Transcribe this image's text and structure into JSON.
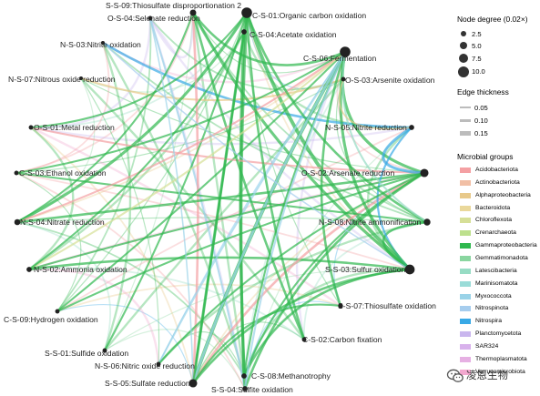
{
  "nodes": [
    {
      "id": "S-S-09",
      "label": "S-S-09:Thiosulfate disproportionation 2",
      "degree": 4.5
    },
    {
      "id": "C-S-01",
      "label": "C-S-01:Organic carbon oxidation",
      "degree": 10
    },
    {
      "id": "C-S-04",
      "label": "C-S-04:Acetate oxidation",
      "degree": 3
    },
    {
      "id": "C-S-06",
      "label": "C-S-06:Fermentation",
      "degree": 10
    },
    {
      "id": "O-S-03",
      "label": "O-S-03:Arsenite oxidation",
      "degree": 2
    },
    {
      "id": "N-S-05",
      "label": "N-S-05:Nitrite reduction",
      "degree": 3
    },
    {
      "id": "O-S-02",
      "label": "O-S-02:Arsenate reduction",
      "degree": 7
    },
    {
      "id": "N-S-08",
      "label": "N-S-08:Nitrite ammonification",
      "degree": 5
    },
    {
      "id": "S-S-03",
      "label": "S-S-03:Sulfur oxidation",
      "degree": 9
    },
    {
      "id": "S-S-07",
      "label": "S-S-07:Thiosulfate oxidation",
      "degree": 2.5
    },
    {
      "id": "C-S-02",
      "label": "C-S-02:Carbon fixation",
      "degree": 2
    },
    {
      "id": "C-S-08",
      "label": "C-S-08:Methanotrophy",
      "degree": 3
    },
    {
      "id": "S-S-04",
      "label": "S-S-04:Sulfite oxidation",
      "degree": 3
    },
    {
      "id": "S-S-05",
      "label": "S-S-05:Sulfate reduction",
      "degree": 7
    },
    {
      "id": "N-S-06",
      "label": "N-S-06:Nitric oxide reduction",
      "degree": 2
    },
    {
      "id": "S-S-01",
      "label": "S-S-01:Sulfide oxidation",
      "degree": 2
    },
    {
      "id": "C-S-09",
      "label": "C-S-09:Hydrogen oxidation",
      "degree": 2
    },
    {
      "id": "N-S-02",
      "label": "N-S-02:Ammonia oxidation",
      "degree": 3
    },
    {
      "id": "N-S-04",
      "label": "N-S-04:Nitrate reduction",
      "degree": 4
    },
    {
      "id": "C-S-03",
      "label": "C-S-03:Ethanol oxidation",
      "degree": 2
    },
    {
      "id": "O-S-01",
      "label": "O-S-01:Metal reduction",
      "degree": 2
    },
    {
      "id": "N-S-07",
      "label": "N-S-07:Nitrous oxide reduction",
      "degree": 1
    },
    {
      "id": "N-S-03",
      "label": "N-S-03:Nitrite oxidation",
      "degree": 1
    },
    {
      "id": "O-S-04",
      "label": "O-S-04:Selenate reduction",
      "degree": 2
    }
  ],
  "edges": [
    {
      "source": "N-S-03",
      "target": "N-S-05",
      "group": "Nitrospira",
      "weight": 0.1
    },
    {
      "source": "N-S-07",
      "target": "O-S-03",
      "group": "Alphaproteobacteria",
      "weight": 0.08
    },
    {
      "source": "O-S-04",
      "target": "S-S-04",
      "group": "Myxococcota",
      "weight": 0.08
    },
    {
      "source": "C-S-01",
      "target": "S-S-03",
      "group": "Gammaproteobacteria",
      "weight": 0.15
    },
    {
      "source": "C-S-01",
      "target": "S-S-05",
      "group": "Gammaproteobacteria",
      "weight": 0.12
    },
    {
      "source": "C-S-01",
      "target": "N-S-04",
      "group": "Gammaproteobacteria",
      "weight": 0.12
    },
    {
      "source": "C-S-06",
      "target": "S-S-05",
      "group": "Gammaproteobacteria",
      "weight": 0.15
    },
    {
      "source": "C-S-06",
      "target": "O-S-02",
      "group": "Gammaproteobacteria",
      "weight": 0.12
    },
    {
      "source": "S-S-09",
      "target": "S-S-03",
      "group": "Gammaproteobacteria",
      "weight": 0.12
    },
    {
      "source": "S-S-09",
      "target": "S-S-05",
      "group": "Acidobacteriota",
      "weight": 0.1
    },
    {
      "source": "N-S-02",
      "target": "S-S-03",
      "group": "Gammaproteobacteria",
      "weight": 0.1
    },
    {
      "source": "N-S-04",
      "target": "O-S-02",
      "group": "Gammaproteobacteria",
      "weight": 0.1
    },
    {
      "source": "C-S-09",
      "target": "C-S-06",
      "group": "Gammaproteobacteria",
      "weight": 0.08
    },
    {
      "source": "S-S-05",
      "target": "O-S-02",
      "group": "Acidobacteriota",
      "weight": 0.1
    },
    {
      "source": "C-S-04",
      "target": "S-S-04",
      "group": "Gammaproteobacteria",
      "weight": 0.12
    },
    {
      "source": "C-S-01",
      "target": "C-S-08",
      "group": "Gammaproteobacteria",
      "weight": 0.12
    },
    {
      "source": "N-S-08",
      "target": "C-S-03",
      "group": "Gammaproteobacteria",
      "weight": 0.08
    },
    {
      "source": "O-S-01",
      "target": "O-S-02",
      "group": "Acidobacteriota",
      "weight": 0.08
    },
    {
      "source": "N-S-06",
      "target": "C-S-06",
      "group": "Myxococcota",
      "weight": 0.08
    },
    {
      "source": "S-S-01",
      "target": "C-S-01",
      "group": "Gammaproteobacteria",
      "weight": 0.08
    },
    {
      "source": "N-S-05",
      "target": "O-S-02",
      "group": "Nitrospira",
      "weight": 0.12
    },
    {
      "source": "S-S-07",
      "target": "C-S-06",
      "group": "Gammaproteobacteria",
      "weight": 0.1
    },
    {
      "source": "C-S-02",
      "target": "S-S-09",
      "group": "Gammaproteobacteria",
      "weight": 0.1
    },
    {
      "source": "S-S-03",
      "target": "N-S-08",
      "group": "Gammaproteobacteria",
      "weight": 0.1
    },
    {
      "source": "C-S-06",
      "target": "N-S-02",
      "group": "Chloroflexota",
      "weight": 0.08
    },
    {
      "source": "S-S-05",
      "target": "S-S-03",
      "group": "Gammaproteobacteria",
      "weight": 0.1
    },
    {
      "source": "C-S-01",
      "target": "O-S-01",
      "group": "Gammaproteobacteria",
      "weight": 0.08
    },
    {
      "source": "N-S-04",
      "target": "C-S-06",
      "group": "Acidobacteriota",
      "weight": 0.08
    },
    {
      "source": "S-S-04",
      "target": "O-S-02",
      "group": "Gammaproteobacteria",
      "weight": 0.1
    },
    {
      "source": "C-S-08",
      "target": "O-S-02",
      "group": "Gammaproteobacteria",
      "weight": 0.08
    },
    {
      "source": "N-S-05",
      "target": "S-S-03",
      "group": "Nitrospira",
      "weight": 0.08
    },
    {
      "source": "C-S-03",
      "target": "C-S-06",
      "group": "Gammaproteobacteria",
      "weight": 0.08
    },
    {
      "source": "C-S-06",
      "target": "S-S-03",
      "group": "Gammaproteobacteria",
      "weight": 0.12
    },
    {
      "source": "C-S-01",
      "target": "N-S-08",
      "group": "Gammaproteobacteria",
      "weight": 0.1
    },
    {
      "source": "S-S-09",
      "target": "N-S-04",
      "group": "Gammaproteobacteria",
      "weight": 0.08
    },
    {
      "source": "C-S-04",
      "target": "N-S-02",
      "group": "Gammaproteobacteria",
      "weight": 0.08
    },
    {
      "source": "S-S-05",
      "target": "C-S-06",
      "group": "Myxococcota",
      "weight": 0.1
    },
    {
      "source": "N-S-06",
      "target": "O-S-02",
      "group": "Gammaproteobacteria",
      "weight": 0.08
    },
    {
      "source": "C-S-09",
      "target": "O-S-02",
      "group": "Gammaproteobacteria",
      "weight": 0.08
    },
    {
      "source": "O-S-04",
      "target": "S-S-05",
      "group": "Myxococcota",
      "weight": 0.06
    },
    {
      "source": "N-S-03",
      "target": "S-S-03",
      "group": "Nitrospinota",
      "weight": 0.06
    },
    {
      "source": "C-S-06",
      "target": "C-S-08",
      "group": "Gammaproteobacteria",
      "weight": 0.08
    },
    {
      "source": "C-S-01",
      "target": "C-S-02",
      "group": "Gammaproteobacteria",
      "weight": 0.1
    },
    {
      "source": "S-S-03",
      "target": "C-S-08",
      "group": "Gammaproteobacteria",
      "weight": 0.1
    },
    {
      "source": "S-S-05",
      "target": "S-S-07",
      "group": "Gammaproteobacteria",
      "weight": 0.08
    },
    {
      "source": "N-S-02",
      "target": "O-S-02",
      "group": "Gammaproteobacteria",
      "weight": 0.08
    },
    {
      "source": "C-S-06",
      "target": "N-S-08",
      "group": "Latescibacteria",
      "weight": 0.08
    },
    {
      "source": "O-S-03",
      "target": "N-S-05",
      "group": "Alphaproteobacteria",
      "weight": 0.06
    },
    {
      "source": "S-S-09",
      "target": "C-S-06",
      "group": "Gammaproteobacteria",
      "weight": 0.1
    },
    {
      "source": "C-S-04",
      "target": "S-S-05",
      "group": "Gammaproteobacteria",
      "weight": 0.08
    },
    {
      "source": "S-S-04",
      "target": "C-S-06",
      "group": "Myxococcota",
      "weight": 0.08
    }
  ],
  "legend": {
    "degree_title": "Node degree (0.02×)",
    "degree_items": [
      {
        "label": "2.5",
        "value": 2.5
      },
      {
        "label": "5.0",
        "value": 5.0
      },
      {
        "label": "7.5",
        "value": 7.5
      },
      {
        "label": "10.0",
        "value": 10.0
      }
    ],
    "edge_title": "Edge thickness",
    "edge_items": [
      {
        "label": "0.05",
        "value": 0.05
      },
      {
        "label": "0.10",
        "value": 0.1
      },
      {
        "label": "0.15",
        "value": 0.15
      }
    ],
    "groups_title": "Microbial groups",
    "groups": [
      {
        "name": "Acidobacteriota",
        "color": "#f4a0a3"
      },
      {
        "name": "Actinobacteriota",
        "color": "#f1bfa5"
      },
      {
        "name": "Alphaproteobacteria",
        "color": "#e8c98a"
      },
      {
        "name": "Bacteroidota",
        "color": "#ead89b"
      },
      {
        "name": "Chloroflexota",
        "color": "#d6df97"
      },
      {
        "name": "Crenarchaeota",
        "color": "#bde08d"
      },
      {
        "name": "Gammaproteobacteria",
        "color": "#2fb84e"
      },
      {
        "name": "Gemmatimonadota",
        "color": "#8ad6a0"
      },
      {
        "name": "Latescibacteria",
        "color": "#97dcc4"
      },
      {
        "name": "Marinisomatota",
        "color": "#9adcd8"
      },
      {
        "name": "Myxococcota",
        "color": "#9ad3e8"
      },
      {
        "name": "Nitrospinota",
        "color": "#a6cdee"
      },
      {
        "name": "Nitrospira",
        "color": "#38a9e6"
      },
      {
        "name": "Planctomycetota",
        "color": "#c9b6ee"
      },
      {
        "name": "SAR324",
        "color": "#d8b1ec"
      },
      {
        "name": "Thermoplasmatota",
        "color": "#e6b0e3"
      },
      {
        "name": "Verrucomicrobiota",
        "color": "#f2a8cf"
      }
    ]
  },
  "watermark": {
    "text": "凌恩生物"
  }
}
